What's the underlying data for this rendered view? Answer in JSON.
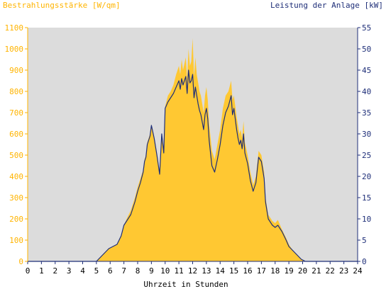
{
  "chart_data": {
    "type": "area",
    "left_axis_title": "Bestrahlungsstärke [W/qm]",
    "right_axis_title": "Leistung der Anlage [kW]",
    "xlabel": "Uhrzeit in Stunden",
    "xlim": [
      0,
      24
    ],
    "ylim_left": [
      0,
      1100
    ],
    "ylim_right": [
      0,
      55
    ],
    "x_ticks": [
      "0",
      "1",
      "2",
      "3",
      "4",
      "5",
      "6",
      "7",
      "8",
      "9",
      "10",
      "11",
      "12",
      "13",
      "14",
      "15",
      "16",
      "17",
      "18",
      "19",
      "20",
      "21",
      "22",
      "23",
      "24"
    ],
    "y_left_ticks": [
      "0",
      "100",
      "200",
      "300",
      "400",
      "500",
      "600",
      "700",
      "800",
      "900",
      "1000",
      "1100"
    ],
    "y_right_ticks": [
      "0",
      "5",
      "10",
      "15",
      "20",
      "25",
      "30",
      "35",
      "40",
      "45",
      "50",
      "55"
    ],
    "grid": false,
    "colors": {
      "plot_background": "#dcdcdc",
      "irradiance_fill": "#ffc832",
      "power_line": "#1e2e78",
      "left_axis_text": "#ffb400",
      "right_axis_text": "#1e2e78"
    },
    "series": [
      {
        "axis": "left",
        "style": "filled-area",
        "x": [
          0,
          5,
          5.3,
          5.6,
          5.9,
          6.2,
          6.5,
          6.8,
          7.0,
          7.2,
          7.5,
          7.8,
          8.0,
          8.2,
          8.4,
          8.5,
          8.6,
          8.7,
          8.9,
          9.0,
          9.2,
          9.4,
          9.6,
          9.75,
          9.9,
          10.0,
          10.2,
          10.4,
          10.6,
          10.8,
          11.0,
          11.1,
          11.2,
          11.3,
          11.5,
          11.6,
          11.7,
          11.8,
          11.9,
          12.0,
          12.1,
          12.2,
          12.3,
          12.4,
          12.5,
          12.6,
          12.8,
          12.9,
          13.0,
          13.1,
          13.2,
          13.4,
          13.6,
          13.8,
          14.0,
          14.2,
          14.4,
          14.6,
          14.8,
          14.9,
          15.0,
          15.2,
          15.3,
          15.4,
          15.5,
          15.6,
          15.7,
          15.8,
          16.0,
          16.2,
          16.4,
          16.6,
          16.8,
          17.0,
          17.2,
          17.3,
          17.5,
          17.8,
          18.0,
          18.2,
          18.5,
          18.8,
          19.0,
          19.3,
          19.6,
          19.9,
          20.2,
          20.4,
          20.6,
          24
        ],
        "y": [
          0,
          0,
          20,
          40,
          60,
          70,
          80,
          120,
          170,
          200,
          240,
          300,
          350,
          390,
          430,
          480,
          500,
          560,
          600,
          640,
          580,
          500,
          420,
          600,
          520,
          730,
          780,
          800,
          830,
          880,
          920,
          880,
          950,
          900,
          960,
          860,
          1000,
          920,
          940,
          1050,
          870,
          960,
          880,
          840,
          800,
          780,
          700,
          780,
          820,
          760,
          650,
          520,
          480,
          550,
          620,
          720,
          780,
          800,
          850,
          760,
          780,
          680,
          640,
          600,
          620,
          580,
          660,
          560,
          500,
          420,
          360,
          400,
          520,
          500,
          420,
          300,
          220,
          190,
          180,
          195,
          150,
          110,
          80,
          50,
          30,
          10,
          0,
          0,
          0,
          0
        ]
      },
      {
        "axis": "right",
        "style": "line",
        "x": [
          0,
          5,
          5.3,
          5.6,
          5.9,
          6.2,
          6.5,
          6.8,
          7.0,
          7.2,
          7.5,
          7.8,
          8.0,
          8.2,
          8.4,
          8.5,
          8.6,
          8.7,
          8.9,
          9.0,
          9.2,
          9.4,
          9.6,
          9.75,
          9.9,
          10.0,
          10.2,
          10.4,
          10.6,
          10.8,
          11.0,
          11.1,
          11.2,
          11.3,
          11.5,
          11.6,
          11.7,
          11.8,
          11.9,
          12.0,
          12.1,
          12.2,
          12.3,
          12.4,
          12.5,
          12.6,
          12.8,
          12.9,
          13.0,
          13.1,
          13.2,
          13.4,
          13.6,
          13.8,
          14.0,
          14.2,
          14.4,
          14.6,
          14.8,
          14.9,
          15.0,
          15.2,
          15.3,
          15.4,
          15.5,
          15.6,
          15.7,
          15.8,
          16.0,
          16.2,
          16.4,
          16.6,
          16.8,
          17.0,
          17.2,
          17.3,
          17.5,
          17.8,
          18.0,
          18.2,
          18.5,
          18.8,
          19.0,
          19.3,
          19.6,
          19.9,
          20.2,
          20.4,
          20.6,
          24
        ],
        "y": [
          0,
          0,
          1,
          2,
          3,
          3.5,
          4,
          6,
          8.5,
          9.5,
          11,
          14,
          16.5,
          18.5,
          21,
          23.5,
          24.5,
          27.5,
          29.5,
          32,
          29,
          25,
          20.5,
          30,
          25.5,
          36,
          37.5,
          38.5,
          39.5,
          41,
          42.5,
          40.5,
          43,
          41.5,
          43.5,
          39.5,
          45,
          42,
          42.5,
          44,
          38.5,
          41,
          39,
          37,
          35.5,
          34.5,
          31,
          34.5,
          36,
          33.5,
          28.5,
          22.5,
          21,
          24,
          27.5,
          32,
          35,
          36.5,
          39,
          34.5,
          36,
          31,
          29,
          27.5,
          28.5,
          26.5,
          30,
          25.5,
          23,
          19,
          16.5,
          18.5,
          24.5,
          23.5,
          19.5,
          14,
          10,
          8.5,
          8,
          8.5,
          7,
          5,
          3.5,
          2.5,
          1.5,
          0.5,
          0,
          0,
          0,
          0
        ]
      }
    ]
  }
}
